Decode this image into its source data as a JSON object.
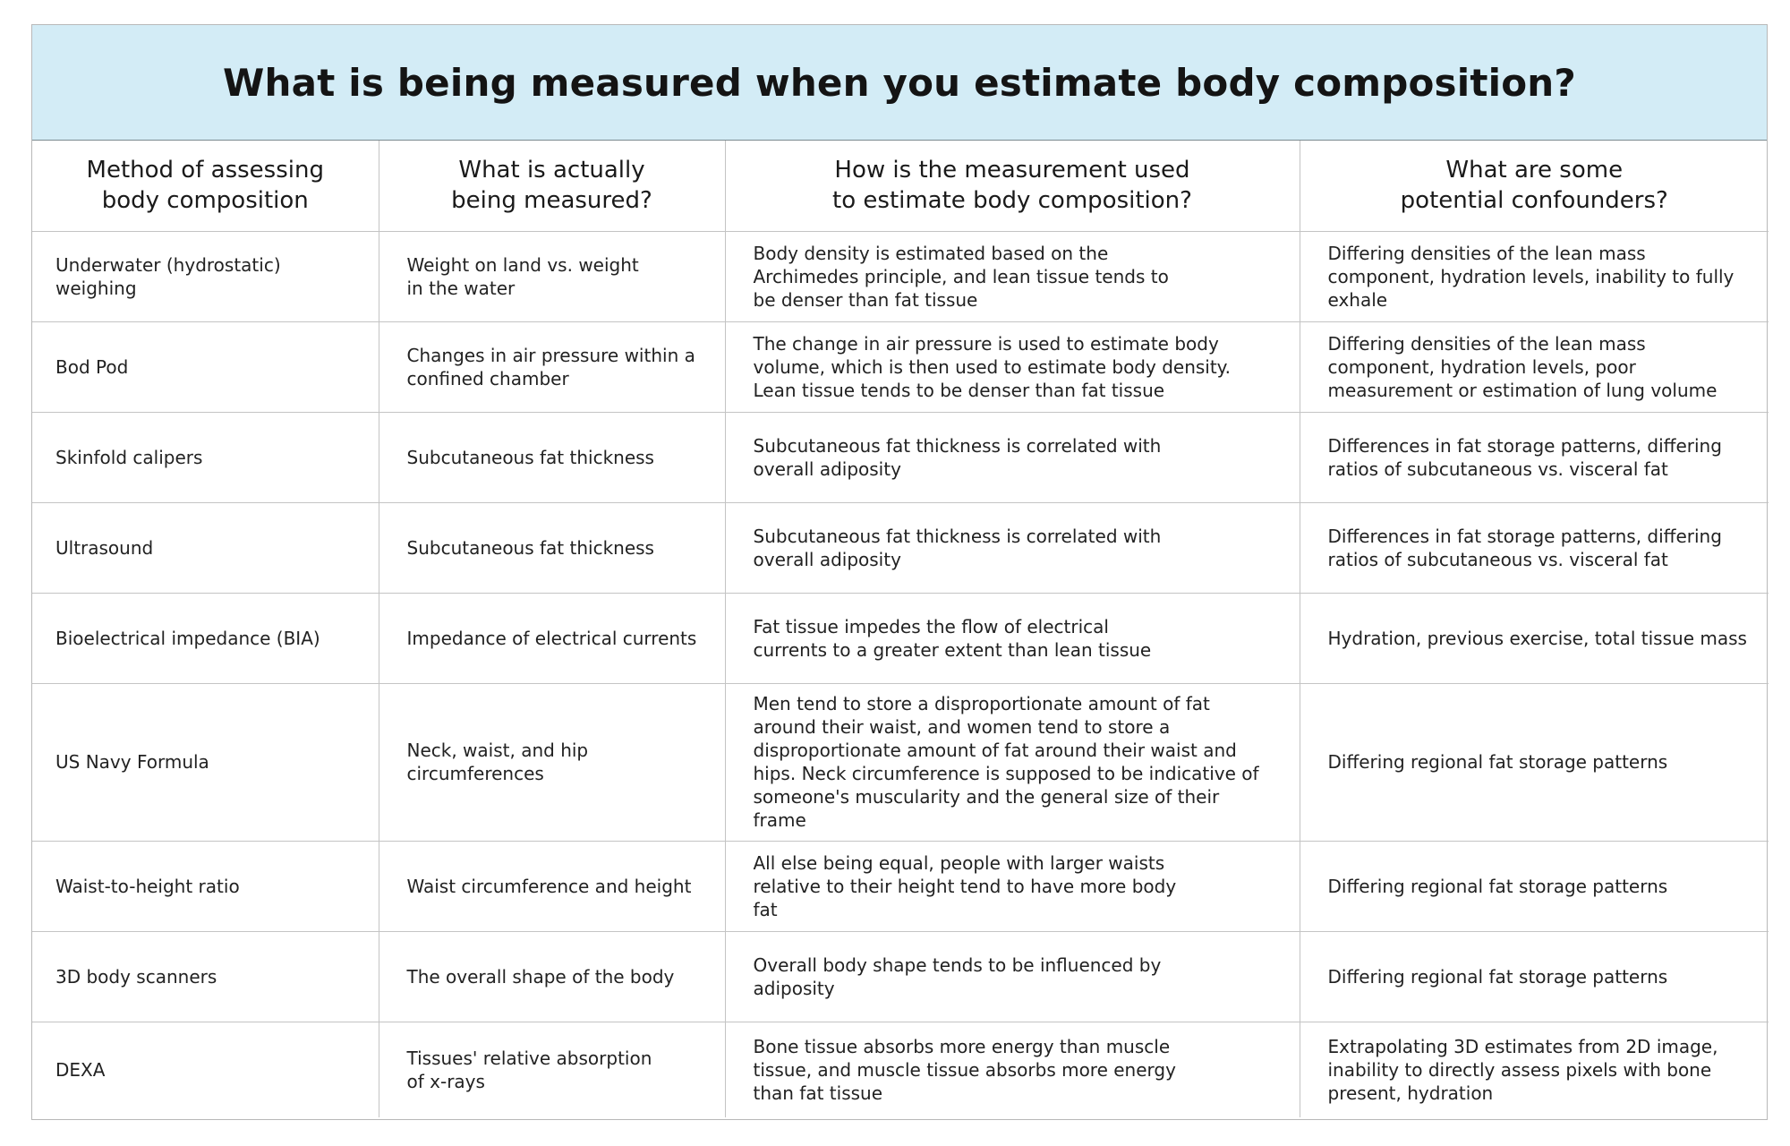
{
  "title": "What is being measured when you estimate body composition?",
  "headers": [
    "Method of assessing\nbody composition",
    "What is actually\nbeing measured?",
    "How is the measurement used\nto estimate body composition?",
    "What are some\npotential confounders?"
  ],
  "rows": [
    {
      "method": "Underwater (hydrostatic) weighing",
      "measured": "Weight on land vs. weight\nin the water",
      "used": "Body density is estimated based on the\nArchimedes principle, and lean tissue tends to\nbe denser than fat tissue",
      "confounders": "Differing densities of the lean mass\ncomponent, hydration levels, inability to fully\nexhale"
    },
    {
      "method": "Bod Pod",
      "measured": "Changes in air pressure within a\nconfined chamber",
      "used": "The change in air pressure is used to estimate body\nvolume, which is then used to estimate body density.\nLean tissue tends to be denser than fat tissue",
      "confounders": "Differing densities of the lean mass\ncomponent, hydration levels, poor\nmeasurement or estimation of lung volume"
    },
    {
      "method": "Skinfold calipers",
      "measured": "Subcutaneous fat thickness",
      "used": "Subcutaneous fat thickness is correlated with\noverall adiposity",
      "confounders": "Differences in fat storage patterns, differing\nratios of subcutaneous vs. visceral fat"
    },
    {
      "method": "Ultrasound",
      "measured": "Subcutaneous fat thickness",
      "used": "Subcutaneous fat thickness is correlated with\noverall adiposity",
      "confounders": "Differences in fat storage patterns, differing\nratios of subcutaneous vs. visceral fat"
    },
    {
      "method": "Bioelectrical impedance (BIA)",
      "measured": "Impedance of electrical currents",
      "used": "Fat tissue impedes the flow of electrical\ncurrents to a greater extent than lean tissue",
      "confounders": "Hydration, previous exercise, total tissue mass"
    },
    {
      "method": "US Navy Formula",
      "measured": "Neck, waist, and hip\ncircumferences",
      "used": "Men tend to store a disproportionate amount of fat\naround their waist, and women tend to store a\ndisproportionate amount of fat around their waist and\nhips. Neck circumference is supposed to be indicative of\nsomeone's muscularity and the general size of their frame",
      "confounders": "Differing regional fat storage patterns"
    },
    {
      "method": "Waist-to-height ratio",
      "measured": "Waist circumference and height",
      "used": "All else being equal, people with larger waists\nrelative to their height tend to have more body\nfat",
      "confounders": "Differing regional fat storage patterns"
    },
    {
      "method": "3D body scanners",
      "measured": "The overall shape of the body",
      "used": "Overall body shape tends to be influenced by\nadiposity",
      "confounders": "Differing regional fat storage patterns"
    },
    {
      "method": "DEXA",
      "measured": "Tissues' relative absorption\nof x-rays",
      "used": "Bone tissue absorbs more energy than muscle\ntissue, and muscle tissue absorbs more energy\nthan fat tissue",
      "confounders": "Extrapolating 3D estimates from 2D image,\ninability to directly assess pixels with bone\npresent, hydration"
    }
  ],
  "colors": {
    "title_background": "#d3ecf6",
    "grid_lines": "#c4c4c4",
    "text": "#1c1c1c"
  }
}
